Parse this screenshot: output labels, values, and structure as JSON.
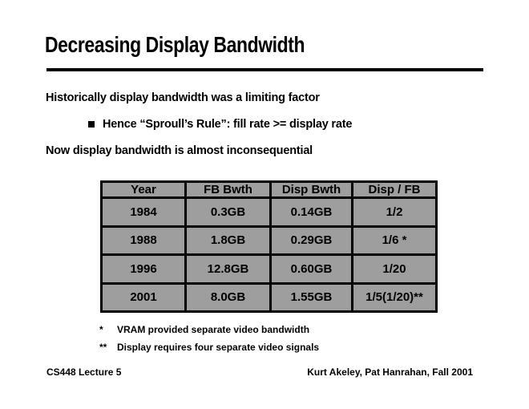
{
  "slide": {
    "title": "Decreasing Display Bandwidth",
    "body": {
      "line1": "Historically display bandwidth was a limiting factor",
      "bullet_text": "Hence “Sproull’s Rule”: fill rate >= display rate",
      "line2": "Now display bandwidth is almost inconsequential"
    },
    "table": {
      "headers": [
        "Year",
        "FB Bwth",
        "Disp Bwth",
        "Disp / FB"
      ],
      "rows": [
        [
          "1984",
          "0.3GB",
          "0.14GB",
          "1/2"
        ],
        [
          "1988",
          "1.8GB",
          "0.29GB",
          "1/6 *"
        ],
        [
          "1996",
          "12.8GB",
          "0.60GB",
          "1/20"
        ],
        [
          "2001",
          "8.0GB",
          "1.55GB",
          "1/5(1/20)**"
        ]
      ],
      "colors": {
        "cell_bg": "#9e9e9e",
        "border": "#000000",
        "text": "#000000"
      }
    },
    "footnotes": [
      {
        "marker": "*",
        "text": "VRAM provided separate video bandwidth"
      },
      {
        "marker": "**",
        "text": "Display requires four separate video signals"
      }
    ],
    "footer": {
      "left": "CS448 Lecture 5",
      "right": "Kurt Akeley, Pat Hanrahan, Fall 2001"
    }
  }
}
